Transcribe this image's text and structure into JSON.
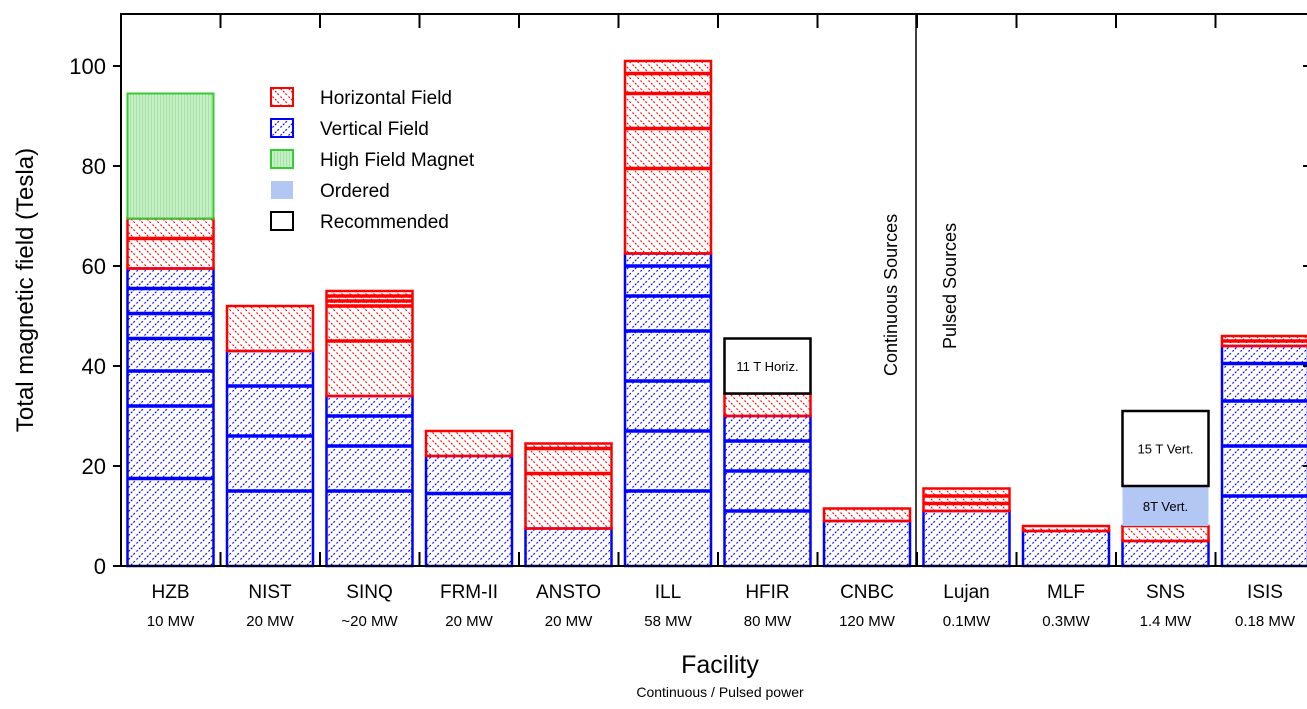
{
  "chart_data": {
    "type": "bar",
    "stacked": true,
    "xlabel": "Facility",
    "xlabel_sub": "Continuous / Pulsed power",
    "ylabel": "Total magnetic field (Tesla)",
    "ylim": [
      0,
      110
    ],
    "yticks": [
      "0",
      "20",
      "40",
      "60",
      "80",
      "100"
    ],
    "grid": false,
    "legend_position": "top-left",
    "colors": {
      "horizontal": "#ff0000",
      "vertical": "#0000ff",
      "high_field": "#33cc33",
      "ordered": "#b3c7f5",
      "recommended": "#000000"
    },
    "legend": [
      {
        "key": "horizontal",
        "label": "Horizontal Field"
      },
      {
        "key": "vertical",
        "label": "Vertical Field"
      },
      {
        "key": "high_field",
        "label": "High Field Magnet"
      },
      {
        "key": "ordered",
        "label": "Ordered"
      },
      {
        "key": "recommended",
        "label": "Recommended"
      }
    ],
    "categories": [
      {
        "name": "HZB",
        "power": "10 MW",
        "vertical": [
          17.5,
          14.5,
          7,
          6.5,
          5,
          5,
          4
        ],
        "horizontal": [
          6,
          4
        ],
        "high_field": 25
      },
      {
        "name": "NIST",
        "power": "20 MW",
        "vertical": [
          15,
          11,
          10,
          7
        ],
        "horizontal": [
          9
        ]
      },
      {
        "name": "SINQ",
        "power": "~20 MW",
        "vertical": [
          15,
          9,
          6,
          4
        ],
        "horizontal": [
          11,
          7,
          1,
          1,
          1
        ]
      },
      {
        "name": "FRM-II",
        "power": "20 MW",
        "vertical": [
          14.5,
          7.5
        ],
        "horizontal": [
          5
        ]
      },
      {
        "name": "ANSTO",
        "power": "20 MW",
        "vertical": [
          7.5
        ],
        "horizontal": [
          11,
          5,
          1
        ]
      },
      {
        "name": "ILL",
        "power": "58 MW",
        "vertical": [
          15,
          12,
          10,
          10,
          7,
          6,
          2.5
        ],
        "horizontal": [
          17,
          8,
          7,
          4,
          2.5
        ]
      },
      {
        "name": "HFIR",
        "power": "80 MW",
        "vertical": [
          11,
          8,
          6,
          5
        ],
        "horizontal": [
          4.5
        ],
        "recommended": {
          "from": 34.5,
          "to": 45.5,
          "label": "11 T Horiz."
        }
      },
      {
        "name": "CNBC",
        "power": "120 MW",
        "vertical": [
          9
        ],
        "horizontal": [
          2.5
        ]
      },
      {
        "name": "Lujan",
        "power": "0.1MW",
        "vertical": [
          11
        ],
        "horizontal": [
          1.5,
          1.5,
          1.5
        ]
      },
      {
        "name": "MLF",
        "power": "0.3MW",
        "vertical": [
          7
        ],
        "horizontal": [
          1
        ]
      },
      {
        "name": "SNS",
        "power": "1.4 MW",
        "vertical": [
          5
        ],
        "horizontal": [
          3
        ],
        "ordered": {
          "from": 8,
          "to": 16,
          "label": "8T Vert."
        },
        "recommended": {
          "from": 16,
          "to": 31,
          "label": "15 T Vert."
        }
      },
      {
        "name": "ISIS",
        "power": "0.18 MW",
        "vertical": [
          14,
          10,
          9,
          7.5,
          3.5
        ],
        "horizontal": [
          1,
          1
        ]
      }
    ],
    "divider_labels": {
      "continuous": "Continuous Sources",
      "pulsed": "Pulsed Sources"
    }
  }
}
